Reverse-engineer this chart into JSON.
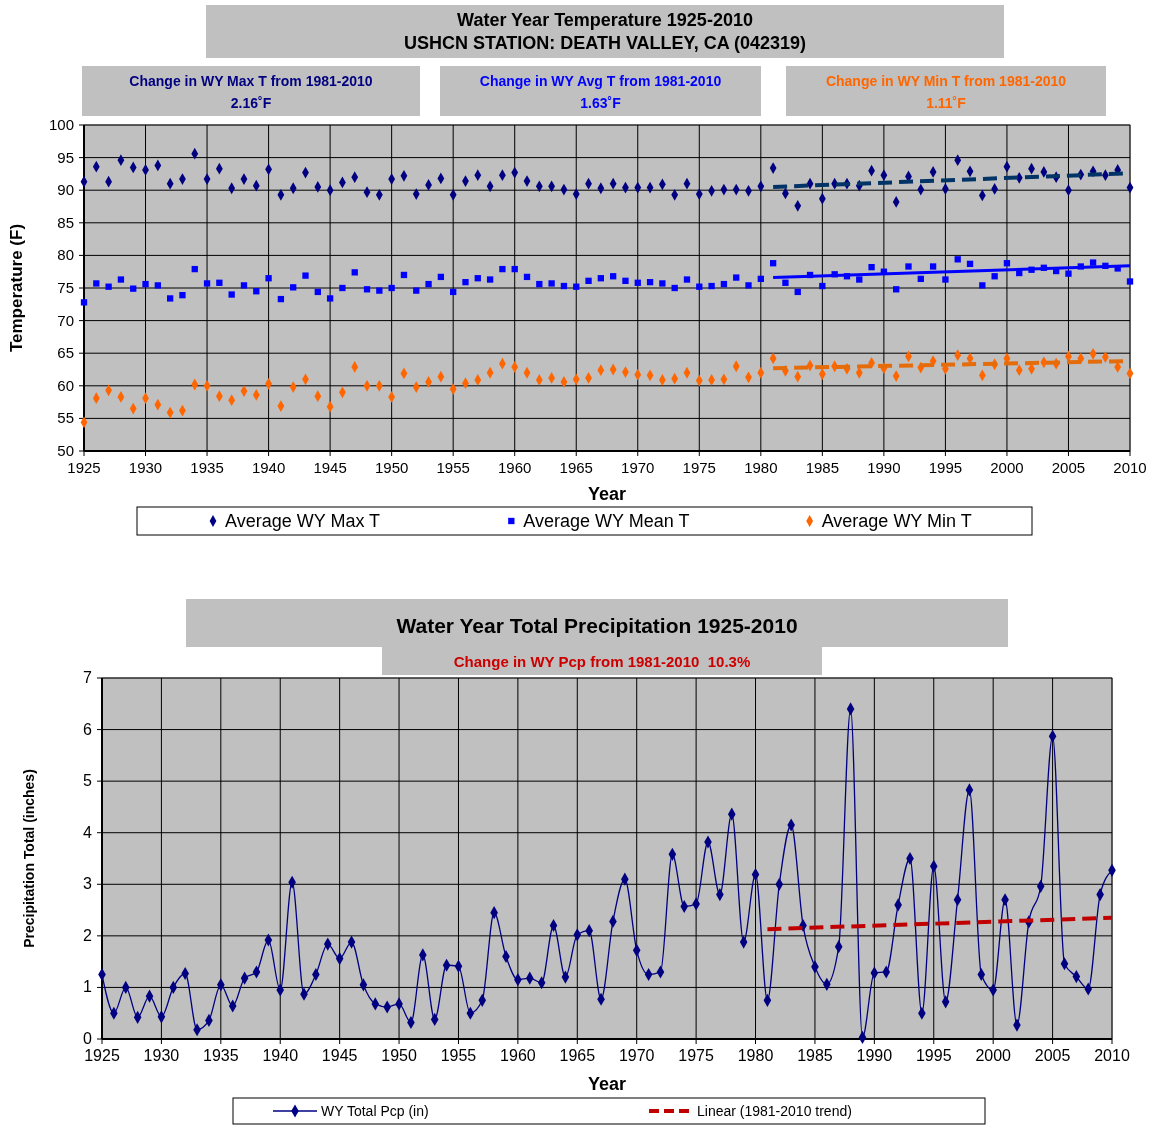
{
  "chart_data": [
    {
      "type": "scatter",
      "title": "Water Year Temperature 1925-2010",
      "subtitle": "USHCN STATION: DEATH VALLEY, CA (042319)",
      "xlabel": "Year",
      "ylabel": "Temperature (F)",
      "annotations": [
        "Change in WY Max T from 1981-2010",
        "2.16˚F",
        "Change in WY Avg T from 1981-2010",
        "1.63˚F",
        "Change in WY Min T from 1981-2010",
        "1.11˚F"
      ],
      "x": [
        1925,
        1926,
        1927,
        1928,
        1929,
        1930,
        1931,
        1932,
        1933,
        1934,
        1935,
        1936,
        1937,
        1938,
        1939,
        1940,
        1941,
        1942,
        1943,
        1944,
        1945,
        1946,
        1947,
        1948,
        1949,
        1950,
        1951,
        1952,
        1953,
        1954,
        1955,
        1956,
        1957,
        1958,
        1959,
        1960,
        1961,
        1962,
        1963,
        1964,
        1965,
        1966,
        1967,
        1968,
        1969,
        1970,
        1971,
        1972,
        1973,
        1974,
        1975,
        1976,
        1977,
        1978,
        1979,
        1980,
        1981,
        1982,
        1983,
        1984,
        1985,
        1986,
        1987,
        1988,
        1989,
        1990,
        1991,
        1992,
        1993,
        1994,
        1995,
        1996,
        1997,
        1998,
        1999,
        2000,
        2001,
        2002,
        2003,
        2004,
        2005,
        2006,
        2007,
        2008,
        2009,
        2010
      ],
      "series": [
        {
          "name": "Average WY Max T",
          "color": "#000080",
          "marker": "diamond",
          "values": [
            91.3,
            93.6,
            91.3,
            94.6,
            93.5,
            93.1,
            93.8,
            91.0,
            91.7,
            95.6,
            91.7,
            93.3,
            90.3,
            91.7,
            90.7,
            93.2,
            89.3,
            90.3,
            92.7,
            90.5,
            90.0,
            91.2,
            92.0,
            89.7,
            89.3,
            91.7,
            92.2,
            89.4,
            90.8,
            91.8,
            89.3,
            91.4,
            92.3,
            90.6,
            92.3,
            92.7,
            91.4,
            90.6,
            90.6,
            90.1,
            89.4,
            91.0,
            90.3,
            91.0,
            90.4,
            90.4,
            90.4,
            90.9,
            89.3,
            91.0,
            89.4,
            89.9,
            90.1,
            90.1,
            89.9,
            90.6,
            93.4,
            89.5,
            87.6,
            91.0,
            88.7,
            91.0,
            91.0,
            90.7,
            93.0,
            92.3,
            88.2,
            92.1,
            90.1,
            92.8,
            90.2,
            94.6,
            92.9,
            89.2,
            90.2,
            93.6,
            91.9,
            93.3,
            92.8,
            92.0,
            90.0,
            92.4,
            92.9,
            92.3,
            93.1,
            90.4
          ]
        },
        {
          "name": "Average WY Mean T",
          "color": "#0000ff",
          "marker": "square",
          "values": [
            72.8,
            75.7,
            75.2,
            76.3,
            74.9,
            75.6,
            75.4,
            73.4,
            73.9,
            77.9,
            75.7,
            75.8,
            74.0,
            75.4,
            74.5,
            76.5,
            73.3,
            75.1,
            76.9,
            74.4,
            73.4,
            75.0,
            77.4,
            74.8,
            74.6,
            75.0,
            77.0,
            74.6,
            75.6,
            76.7,
            74.4,
            75.9,
            76.5,
            76.3,
            77.9,
            77.9,
            76.7,
            75.6,
            75.7,
            75.3,
            75.2,
            76.1,
            76.5,
            76.8,
            76.1,
            75.8,
            75.9,
            75.7,
            75.0,
            76.3,
            75.2,
            75.3,
            75.6,
            76.6,
            75.4,
            76.4,
            78.8,
            75.8,
            74.4,
            77.0,
            75.3,
            77.1,
            76.8,
            76.3,
            78.2,
            77.5,
            74.8,
            78.3,
            76.4,
            78.3,
            76.3,
            79.4,
            78.7,
            75.4,
            76.8,
            78.8,
            77.3,
            77.8,
            78.1,
            77.6,
            77.2,
            78.3,
            78.9,
            78.4,
            78.0,
            76.0
          ]
        },
        {
          "name": "Average WY Min T",
          "color": "#ff6600",
          "marker": "diamond",
          "values": [
            54.4,
            58.1,
            59.3,
            58.3,
            56.5,
            58.1,
            57.1,
            55.9,
            56.2,
            60.2,
            60.0,
            58.4,
            57.8,
            59.2,
            58.6,
            60.3,
            56.9,
            59.8,
            61.0,
            58.4,
            56.8,
            59.0,
            62.9,
            60.0,
            60.0,
            58.3,
            61.9,
            59.8,
            60.6,
            61.4,
            59.5,
            60.4,
            60.9,
            62.0,
            63.4,
            62.9,
            62.0,
            60.9,
            61.2,
            60.6,
            61.0,
            61.2,
            62.4,
            62.5,
            62.1,
            61.7,
            61.6,
            60.9,
            61.1,
            62.0,
            60.8,
            60.9,
            61.0,
            63.0,
            61.3,
            62.0,
            64.2,
            62.3,
            61.4,
            63.1,
            61.8,
            63.0,
            62.6,
            62.0,
            63.5,
            62.7,
            61.5,
            64.5,
            62.8,
            63.8,
            62.6,
            64.7,
            64.2,
            61.6,
            63.3,
            64.2,
            62.4,
            62.6,
            63.6,
            63.4,
            64.5,
            64.2,
            64.9,
            64.4,
            62.9,
            61.9
          ]
        },
        {
          "type": "line",
          "color": "#003366",
          "line_style": "dashed",
          "marker": "none",
          "values": [
            null,
            null,
            null,
            null,
            null,
            null,
            null,
            null,
            null,
            null,
            null,
            null,
            null,
            null,
            null,
            null,
            null,
            null,
            null,
            null,
            null,
            null,
            null,
            null,
            null,
            null,
            null,
            null,
            null,
            null,
            null,
            null,
            null,
            null,
            null,
            null,
            null,
            null,
            null,
            null,
            null,
            null,
            null,
            null,
            null,
            null,
            null,
            null,
            null,
            null,
            null,
            null,
            null,
            null,
            null,
            null,
            90.5,
            null,
            null,
            null,
            null,
            null,
            null,
            null,
            null,
            null,
            null,
            null,
            null,
            null,
            null,
            null,
            null,
            null,
            null,
            null,
            null,
            null,
            null,
            null,
            null,
            null,
            null,
            null,
            null,
            92.6
          ]
        },
        {
          "type": "line",
          "color": "#0000ff",
          "line_style": "solid",
          "marker": "none",
          "values": [
            null,
            null,
            null,
            null,
            null,
            null,
            null,
            null,
            null,
            null,
            null,
            null,
            null,
            null,
            null,
            null,
            null,
            null,
            null,
            null,
            null,
            null,
            null,
            null,
            null,
            null,
            null,
            null,
            null,
            null,
            null,
            null,
            null,
            null,
            null,
            null,
            null,
            null,
            null,
            null,
            null,
            null,
            null,
            null,
            null,
            null,
            null,
            null,
            null,
            null,
            null,
            null,
            null,
            null,
            null,
            null,
            76.6,
            null,
            null,
            null,
            null,
            null,
            null,
            null,
            null,
            null,
            null,
            null,
            null,
            null,
            null,
            null,
            null,
            null,
            null,
            null,
            null,
            null,
            null,
            null,
            null,
            null,
            null,
            null,
            null,
            78.4
          ]
        },
        {
          "type": "line",
          "color": "#e46c0a",
          "line_style": "dashed",
          "marker": "none",
          "values": [
            null,
            null,
            null,
            null,
            null,
            null,
            null,
            null,
            null,
            null,
            null,
            null,
            null,
            null,
            null,
            null,
            null,
            null,
            null,
            null,
            null,
            null,
            null,
            null,
            null,
            null,
            null,
            null,
            null,
            null,
            null,
            null,
            null,
            null,
            null,
            null,
            null,
            null,
            null,
            null,
            null,
            null,
            null,
            null,
            null,
            null,
            null,
            null,
            null,
            null,
            null,
            null,
            null,
            null,
            null,
            null,
            62.7,
            null,
            null,
            null,
            null,
            null,
            null,
            null,
            null,
            null,
            null,
            null,
            null,
            null,
            null,
            null,
            null,
            null,
            null,
            null,
            null,
            null,
            null,
            null,
            null,
            null,
            null,
            null,
            null,
            63.8
          ]
        }
      ],
      "xlim": [
        1925,
        2010
      ],
      "xticks": [
        1925,
        1930,
        1935,
        1940,
        1945,
        1950,
        1955,
        1960,
        1965,
        1970,
        1975,
        1980,
        1985,
        1990,
        1995,
        2000,
        2005,
        2010
      ],
      "ylim": [
        50,
        100
      ],
      "yticks": [
        50,
        55,
        60,
        65,
        70,
        75,
        80,
        85,
        90,
        95,
        100
      ],
      "grid": true,
      "legend": "bottom"
    },
    {
      "type": "line",
      "title": "Water Year Total Precipitation 1925-2010",
      "subtitle": "Change in WY Pcp from 1981-2010  10.3%",
      "xlabel": "Year",
      "ylabel": "Precipitation Total (inches)",
      "x": [
        1925,
        1926,
        1927,
        1928,
        1929,
        1930,
        1931,
        1932,
        1933,
        1934,
        1935,
        1936,
        1937,
        1938,
        1939,
        1940,
        1941,
        1942,
        1943,
        1944,
        1945,
        1946,
        1947,
        1948,
        1949,
        1950,
        1951,
        1952,
        1953,
        1954,
        1955,
        1956,
        1957,
        1958,
        1959,
        1960,
        1961,
        1962,
        1963,
        1964,
        1965,
        1966,
        1967,
        1968,
        1969,
        1970,
        1971,
        1972,
        1973,
        1974,
        1975,
        1976,
        1977,
        1978,
        1979,
        1980,
        1981,
        1982,
        1983,
        1984,
        1985,
        1986,
        1987,
        1988,
        1989,
        1990,
        1991,
        1992,
        1993,
        1994,
        1995,
        1996,
        1997,
        1998,
        1999,
        2000,
        2001,
        2002,
        2003,
        2004,
        2005,
        2006,
        2007,
        2008,
        2009,
        2010
      ],
      "series": [
        {
          "name": "WY Total Pcp (in)",
          "color": "#000080",
          "marker": "diamond",
          "line_style": "solid",
          "values": [
            1.25,
            0.5,
            1.0,
            0.42,
            0.83,
            0.43,
            1.0,
            1.27,
            0.18,
            0.36,
            1.05,
            0.64,
            1.18,
            1.3,
            1.92,
            0.95,
            3.04,
            0.87,
            1.25,
            1.84,
            1.56,
            1.88,
            1.05,
            0.68,
            0.62,
            0.68,
            0.32,
            1.63,
            0.38,
            1.43,
            1.41,
            0.5,
            0.75,
            2.45,
            1.6,
            1.15,
            1.18,
            1.09,
            2.2,
            1.2,
            2.02,
            2.1,
            0.77,
            2.28,
            3.1,
            1.72,
            1.25,
            1.3,
            3.58,
            2.57,
            2.62,
            3.82,
            2.8,
            4.36,
            1.88,
            3.19,
            0.75,
            3.0,
            4.15,
            2.2,
            1.4,
            1.06,
            1.79,
            6.4,
            0.03,
            1.28,
            1.3,
            2.6,
            3.5,
            0.5,
            3.35,
            0.72,
            2.7,
            4.83,
            1.25,
            0.95,
            2.7,
            0.27,
            2.27,
            2.96,
            5.87,
            1.46,
            1.21,
            0.97,
            2.8,
            3.27
          ]
        },
        {
          "name": "Linear (1981-2010 trend)",
          "color": "#c00000",
          "marker": "none",
          "line_style": "dashed",
          "values": [
            null,
            null,
            null,
            null,
            null,
            null,
            null,
            null,
            null,
            null,
            null,
            null,
            null,
            null,
            null,
            null,
            null,
            null,
            null,
            null,
            null,
            null,
            null,
            null,
            null,
            null,
            null,
            null,
            null,
            null,
            null,
            null,
            null,
            null,
            null,
            null,
            null,
            null,
            null,
            null,
            null,
            null,
            null,
            null,
            null,
            null,
            null,
            null,
            null,
            null,
            null,
            null,
            null,
            null,
            null,
            null,
            2.13,
            null,
            null,
            null,
            null,
            null,
            null,
            null,
            null,
            null,
            null,
            null,
            null,
            null,
            null,
            null,
            null,
            null,
            null,
            null,
            null,
            null,
            null,
            null,
            null,
            null,
            null,
            null,
            null,
            2.35
          ]
        }
      ],
      "xlim": [
        1925,
        2010
      ],
      "xticks": [
        1925,
        1930,
        1935,
        1940,
        1945,
        1950,
        1955,
        1960,
        1965,
        1970,
        1975,
        1980,
        1985,
        1990,
        1995,
        2000,
        2005,
        2010
      ],
      "ylim": [
        0,
        7
      ],
      "yticks": [
        0,
        1,
        2,
        3,
        4,
        5,
        6,
        7
      ],
      "grid": true,
      "legend": "bottom"
    }
  ]
}
